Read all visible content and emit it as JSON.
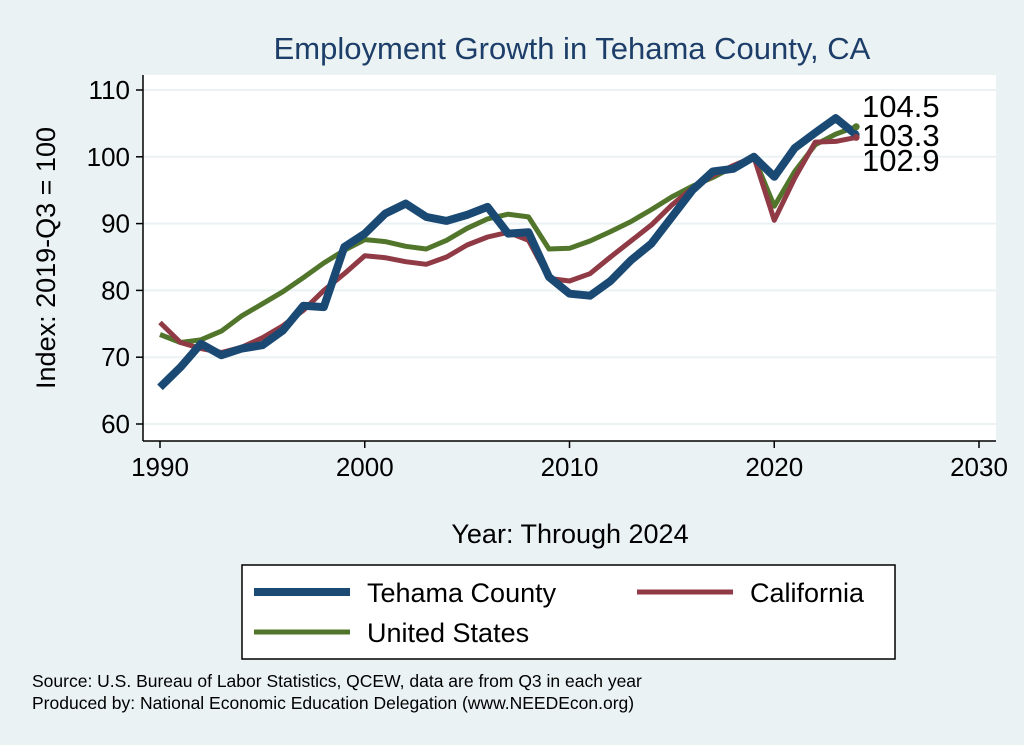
{
  "chart_data": {
    "type": "line",
    "title": "Employment Growth in Tehama County, CA",
    "xlabel": "Year: Through 2024",
    "ylabel": "Index: 2019-Q3 = 100",
    "xlim": [
      1990,
      2030
    ],
    "ylim": [
      60,
      110
    ],
    "xticks": [
      1990,
      2000,
      2010,
      2020,
      2030
    ],
    "yticks": [
      60,
      70,
      80,
      90,
      100,
      110
    ],
    "grid": true,
    "x": [
      1990,
      1991,
      1992,
      1993,
      1994,
      1995,
      1996,
      1997,
      1998,
      1999,
      2000,
      2001,
      2002,
      2003,
      2004,
      2005,
      2006,
      2007,
      2008,
      2009,
      2010,
      2011,
      2012,
      2013,
      2014,
      2015,
      2016,
      2017,
      2018,
      2019,
      2020,
      2021,
      2022,
      2023,
      2024
    ],
    "series": [
      {
        "key": "tehama",
        "name": "Tehama  County",
        "color": "#1a4a74",
        "values": [
          65.5,
          68.5,
          72.0,
          70.3,
          71.3,
          71.8,
          74.0,
          77.7,
          77.5,
          86.5,
          88.5,
          91.5,
          93.0,
          91.0,
          90.4,
          91.3,
          92.5,
          88.5,
          88.7,
          82.0,
          79.5,
          79.2,
          81.4,
          84.5,
          87.0,
          91.0,
          95.0,
          97.8,
          98.2,
          100.0,
          97.0,
          101.3,
          103.6,
          105.8,
          103.3
        ]
      },
      {
        "key": "california",
        "name": "California",
        "color": "#903a45",
        "values": [
          75.2,
          72.2,
          71.3,
          70.7,
          71.5,
          72.9,
          74.7,
          77.0,
          80.0,
          82.5,
          85.2,
          84.9,
          84.3,
          83.9,
          85.0,
          86.8,
          88.0,
          88.7,
          87.5,
          81.8,
          81.4,
          82.5,
          85.0,
          87.4,
          89.8,
          92.8,
          95.3,
          97.2,
          98.7,
          100.0,
          90.5,
          96.8,
          102.2,
          102.3,
          102.9
        ]
      },
      {
        "key": "us",
        "name": "United States",
        "color": "#51762b",
        "values": [
          73.4,
          72.2,
          72.6,
          73.9,
          76.2,
          78.0,
          79.8,
          81.9,
          84.1,
          86.0,
          87.6,
          87.3,
          86.6,
          86.2,
          87.5,
          89.3,
          90.7,
          91.4,
          91.0,
          86.2,
          86.3,
          87.4,
          88.8,
          90.3,
          92.1,
          94.0,
          95.6,
          96.9,
          98.5,
          100.0,
          92.6,
          97.8,
          101.8,
          103.4,
          104.5
        ]
      }
    ],
    "end_labels": [
      {
        "series": "us",
        "label": "104.5"
      },
      {
        "series": "tehama",
        "label": "103.3"
      },
      {
        "series": "california",
        "label": "102.9"
      }
    ],
    "legend": {
      "position": "bottom",
      "items": [
        {
          "series": "tehama",
          "label": "Tehama  County"
        },
        {
          "series": "california",
          "label": "California"
        },
        {
          "series": "us",
          "label": "United States"
        }
      ]
    }
  },
  "source_line1": "Source: U.S. Bureau of Labor Statistics, QCEW, data are from Q3 in each year",
  "source_line2": "Produced by: National Economic Education Delegation (www.NEEDEcon.org)"
}
